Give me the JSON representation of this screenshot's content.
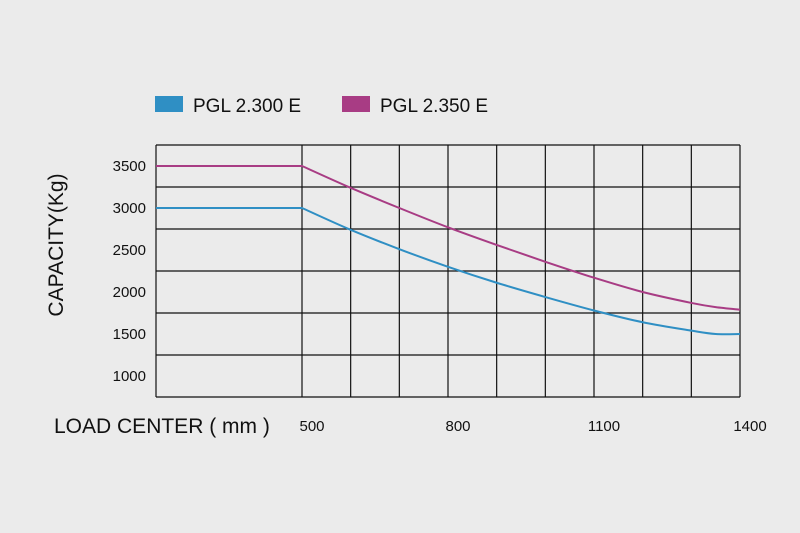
{
  "chart_data": {
    "type": "line",
    "xlabel": "LOAD CENTER ( mm )",
    "ylabel": "CAPACITY(Kg)",
    "x_ticks": [
      "500",
      "800",
      "1100",
      "1400"
    ],
    "y_ticks": [
      "3500",
      "3000",
      "2500",
      "2000",
      "1500",
      "1000"
    ],
    "xlim": [
      200,
      1400
    ],
    "ylim": [
      750,
      3750
    ],
    "legend_position": "top",
    "grid": true,
    "series": [
      {
        "name": "PGL 2.300 E",
        "color": "#2f8fc4",
        "x": [
          200,
          500,
          600,
          700,
          800,
          900,
          1000,
          1100,
          1200,
          1300,
          1350,
          1400
        ],
        "y": [
          3000,
          3000,
          2740,
          2510,
          2300,
          2110,
          1940,
          1780,
          1640,
          1540,
          1500,
          1500
        ]
      },
      {
        "name": "PGL 2.350 E",
        "color": "#a83c84",
        "x": [
          200,
          500,
          600,
          700,
          800,
          900,
          1000,
          1100,
          1200,
          1300,
          1350,
          1400
        ],
        "y": [
          3500,
          3500,
          3240,
          3000,
          2770,
          2560,
          2360,
          2170,
          2000,
          1870,
          1820,
          1790
        ]
      }
    ]
  }
}
